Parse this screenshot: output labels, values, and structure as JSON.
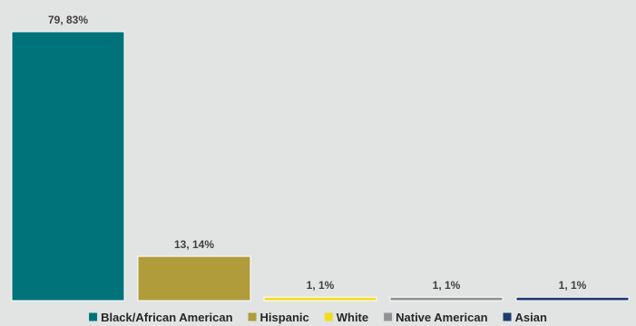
{
  "chart_data": {
    "type": "bar",
    "categories": [
      "Black/African American",
      "Hispanic",
      "White",
      "Native American",
      "Asian"
    ],
    "values": [
      79,
      13,
      1,
      1,
      1
    ],
    "data_labels": [
      "79, 83%",
      "13, 14%",
      "1, 1%",
      "1, 1%",
      "1, 1%"
    ],
    "colors": [
      "#00737a",
      "#b09c3a",
      "#f2dc1f",
      "#8f9396",
      "#1f3c70"
    ],
    "title": "",
    "xlabel": "",
    "ylabel": "",
    "ylim": [
      0,
      79
    ],
    "grid": false,
    "legend": "bottom"
  }
}
